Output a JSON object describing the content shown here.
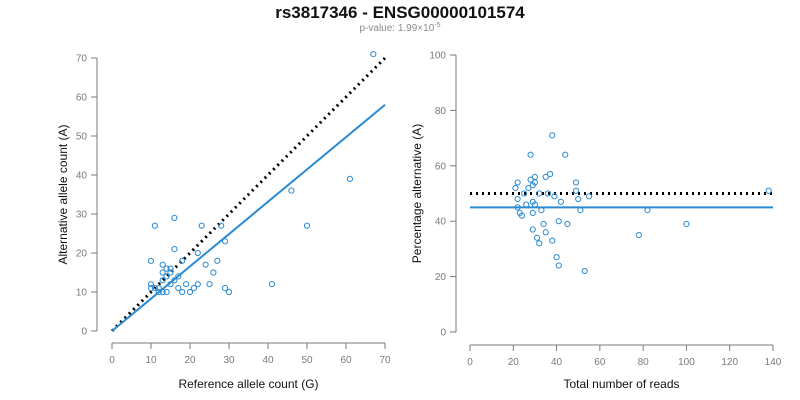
{
  "title": "rs3817346 - ENSG00000101574",
  "subtitle": {
    "prefix": "p-value: 1.99×10",
    "exponent": "-5"
  },
  "colors": {
    "points": "#2a8ad4",
    "fit_line": "#2a8ad4",
    "reference_line": "#000000",
    "axis": "#7a7a7a"
  },
  "chart_data": [
    {
      "type": "scatter",
      "xlabel": "Reference allele count (G)",
      "ylabel": "Alternative allele count (A)",
      "xlim": [
        0,
        70
      ],
      "ylim": [
        0,
        70
      ],
      "xticks": [
        0,
        10,
        20,
        30,
        40,
        50,
        60,
        70
      ],
      "yticks": [
        0,
        10,
        20,
        30,
        40,
        50,
        60,
        70
      ],
      "grid": false,
      "points": [
        [
          10,
          18
        ],
        [
          11,
          27
        ],
        [
          10,
          12
        ],
        [
          10,
          11
        ],
        [
          11,
          11
        ],
        [
          12,
          10
        ],
        [
          12,
          11
        ],
        [
          13,
          10
        ],
        [
          13,
          13
        ],
        [
          13,
          15
        ],
        [
          13,
          17
        ],
        [
          14,
          14
        ],
        [
          14,
          16
        ],
        [
          14,
          10
        ],
        [
          15,
          12
        ],
        [
          15,
          16
        ],
        [
          15,
          15
        ],
        [
          16,
          13
        ],
        [
          16,
          21
        ],
        [
          16,
          29
        ],
        [
          17,
          14
        ],
        [
          17,
          11
        ],
        [
          18,
          18
        ],
        [
          18,
          10
        ],
        [
          19,
          12
        ],
        [
          20,
          10
        ],
        [
          21,
          11
        ],
        [
          22,
          20
        ],
        [
          22,
          12
        ],
        [
          23,
          27
        ],
        [
          24,
          17
        ],
        [
          25,
          12
        ],
        [
          26,
          15
        ],
        [
          27,
          18
        ],
        [
          28,
          27
        ],
        [
          29,
          23
        ],
        [
          29,
          11
        ],
        [
          30,
          10
        ],
        [
          41,
          12
        ],
        [
          46,
          36
        ],
        [
          50,
          27
        ],
        [
          61,
          39
        ],
        [
          67,
          71
        ]
      ],
      "lines": [
        {
          "name": "dotted reference",
          "style": "dotted",
          "x": [
            0,
            70
          ],
          "y": [
            0,
            70
          ]
        },
        {
          "name": "fit",
          "style": "solid",
          "x": [
            0,
            70
          ],
          "y": [
            0,
            58
          ]
        }
      ]
    },
    {
      "type": "scatter",
      "xlabel": "Total number of reads",
      "ylabel": "Percentage alternative (A)",
      "xlim": [
        0,
        140
      ],
      "ylim": [
        0,
        100
      ],
      "xticks": [
        0,
        20,
        40,
        60,
        80,
        100,
        120,
        140
      ],
      "yticks": [
        0,
        20,
        40,
        60,
        80,
        100
      ],
      "grid": false,
      "points": [
        [
          21,
          52
        ],
        [
          22,
          54
        ],
        [
          22,
          48
        ],
        [
          22,
          45
        ],
        [
          23,
          43
        ],
        [
          24,
          42
        ],
        [
          25,
          50
        ],
        [
          26,
          46
        ],
        [
          27,
          52
        ],
        [
          28,
          55
        ],
        [
          28,
          64
        ],
        [
          29,
          53
        ],
        [
          29,
          47
        ],
        [
          29,
          43
        ],
        [
          29,
          37
        ],
        [
          30,
          54
        ],
        [
          30,
          56
        ],
        [
          30,
          46
        ],
        [
          31,
          34
        ],
        [
          32,
          32
        ],
        [
          32,
          50
        ],
        [
          33,
          44
        ],
        [
          34,
          39
        ],
        [
          35,
          36
        ],
        [
          35,
          56
        ],
        [
          36,
          50
        ],
        [
          37,
          57
        ],
        [
          38,
          33
        ],
        [
          38,
          71
        ],
        [
          39,
          49
        ],
        [
          40,
          27
        ],
        [
          41,
          24
        ],
        [
          41,
          40
        ],
        [
          42,
          47
        ],
        [
          44,
          64
        ],
        [
          45,
          39
        ],
        [
          49,
          54
        ],
        [
          49,
          51
        ],
        [
          50,
          48
        ],
        [
          51,
          44
        ],
        [
          53,
          22
        ],
        [
          55,
          49
        ],
        [
          78,
          35
        ],
        [
          82,
          44
        ],
        [
          100,
          39
        ],
        [
          138,
          51
        ]
      ],
      "lines": [
        {
          "name": "dotted reference",
          "style": "dotted",
          "x": [
            0,
            140
          ],
          "y": [
            50,
            50
          ]
        },
        {
          "name": "fit",
          "style": "solid",
          "x": [
            0,
            140
          ],
          "y": [
            45,
            45
          ]
        }
      ]
    }
  ]
}
